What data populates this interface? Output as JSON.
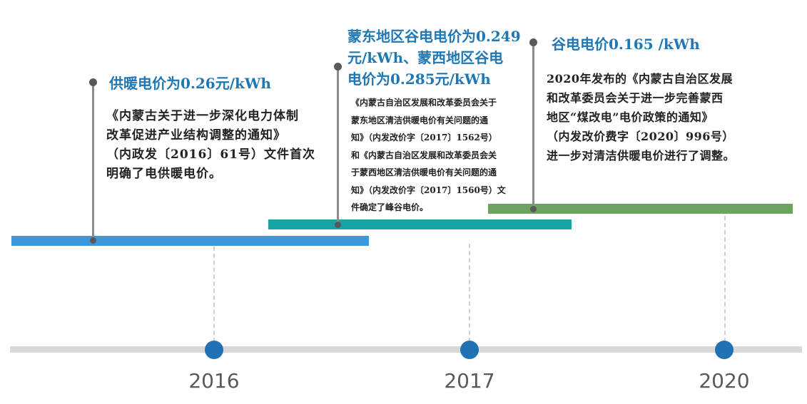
{
  "events": [
    {
      "title": "供暖电价为0.26元/kWh",
      "lines": [
        "《内蒙古关于进一步深化电力体制",
        "改革促进产业结构调整的通知》",
        "（内政发〔2016〕61号）文件首次",
        "明确了电供暖电价。"
      ]
    },
    {
      "title_lines": [
        "蒙东地区谷电电价为0.249",
        "元/kWh、蒙西地区谷电",
        "电价为0.285元/kWh"
      ],
      "lines": [
        "《内蒙古自治区发展和改革委员会关于",
        "蒙东地区清洁供暖电价有关问题的通",
        "知》（内发改价字〔2017〕1562号）",
        "和《内蒙古自治区发展和改革委员会关",
        "于蒙西地区清洁供暖电价有关问题的通",
        "知》（内发改价字〔2017〕1560号）文",
        "件确定了峰谷电价。"
      ]
    },
    {
      "title": "谷电电价0.165 /kWh",
      "lines": [
        "2020年发布的《内蒙古自治区发展",
        "和改革委员会关于进一步完善蒙西",
        "地区“煤改电”电价政策的通知》",
        "（内发改价费字〔2020〕996号）",
        "进一步对清洁供暖电价进行了调整。"
      ]
    }
  ],
  "years": [
    "2016",
    "2017",
    "2020"
  ],
  "colors": {
    "bar_2016": "#3a98db",
    "bar_2017": "#1aa3a3",
    "bar_2020": "#6aa55e",
    "node": "#2171b5",
    "title": "#1f77b4"
  }
}
